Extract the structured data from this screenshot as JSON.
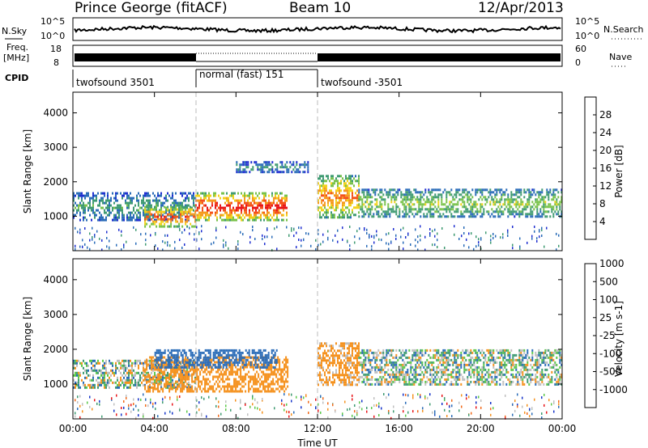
{
  "header": {
    "station": "Prince George (fitACF)",
    "beam": "Beam 10",
    "date": "12/Apr/2013"
  },
  "strip_labels": {
    "nsky": "N.Sky",
    "nsky_ticks": [
      "10^5",
      "10^0"
    ],
    "nsearch": "N.Search",
    "nsearch_ticks": [
      "10^5",
      "10^0"
    ],
    "freq_line1": "Freq.",
    "freq_line2": "[MHz]",
    "freq_ticks": [
      "18",
      "8"
    ],
    "nave": "Nave",
    "nave_ticks": [
      "60",
      "0"
    ],
    "cpid": "CPID"
  },
  "cpid_segments": [
    {
      "label": "twofsound 3501",
      "start": 0,
      "end": 6
    },
    {
      "label": "normal (fast) 151",
      "start": 6,
      "end": 12
    },
    {
      "label": "twofsound -3501",
      "start": 12,
      "end": 24
    }
  ],
  "xaxis": {
    "label": "Time UT",
    "ticks": [
      "00:00",
      "04:00",
      "08:00",
      "12:00",
      "16:00",
      "20:00",
      "00:00"
    ],
    "range_hours": [
      0,
      24
    ]
  },
  "chart_data": [
    {
      "type": "heatmap",
      "name": "power",
      "ylabel": "Slant Range [km]",
      "yticks": [
        "1000",
        "2000",
        "3000",
        "4000"
      ],
      "ylim": [
        0,
        4600
      ],
      "colorbar_label": "Power [dB]",
      "colorbar_ticks": [
        "4",
        "8",
        "12",
        "16",
        "20",
        "24",
        "28"
      ],
      "colorbar_colors": [
        "#1f2fd0",
        "#2a6cb8",
        "#3f9b72",
        "#79c24a",
        "#f2d21a",
        "#f59a1e",
        "#f4521a",
        "#e8161a"
      ],
      "echo_bands": [
        {
          "t_start": 0.0,
          "t_end": 6.0,
          "range_low": 900,
          "range_high": 1700,
          "power_db": 10
        },
        {
          "t_start": 3.5,
          "t_end": 6.0,
          "range_low": 700,
          "range_high": 1300,
          "power_db": 25
        },
        {
          "t_start": 6.0,
          "t_end": 10.5,
          "range_low": 900,
          "range_high": 1700,
          "power_db": 28
        },
        {
          "t_start": 8.0,
          "t_end": 11.5,
          "range_low": 2300,
          "range_high": 2600,
          "power_db": 8
        },
        {
          "t_start": 12.0,
          "t_end": 14.0,
          "range_low": 1000,
          "range_high": 2200,
          "power_db": 22
        },
        {
          "t_start": 14.0,
          "t_end": 24.0,
          "range_low": 1000,
          "range_high": 1800,
          "power_db": 14
        }
      ]
    },
    {
      "type": "heatmap",
      "name": "velocity",
      "ylabel": "Slant Range [km]",
      "yticks": [
        "1000",
        "2000",
        "3000",
        "4000"
      ],
      "ylim": [
        0,
        4600
      ],
      "colorbar_label": "Velocity [m s-1]",
      "colorbar_ticks": [
        "1000",
        "500",
        "100",
        "25",
        "-25",
        "-100",
        "-500",
        "-1000"
      ],
      "colorbar_colors": [
        "#1533c8",
        "#2a6cb8",
        "#3f9b72",
        "#5cc84a",
        "#bfbfbf",
        "#f5921e",
        "#f26a1a",
        "#e8161a"
      ],
      "echo_bands": [
        {
          "t_start": 0.0,
          "t_end": 6.0,
          "range_low": 900,
          "range_high": 1700,
          "velocity": 0
        },
        {
          "t_start": 3.5,
          "t_end": 10.5,
          "range_low": 800,
          "range_high": 1800,
          "velocity": -300
        },
        {
          "t_start": 4.0,
          "t_end": 10.0,
          "range_low": 1500,
          "range_high": 2000,
          "velocity": 300
        },
        {
          "t_start": 12.0,
          "t_end": 14.0,
          "range_low": 1000,
          "range_high": 2200,
          "velocity": -200
        },
        {
          "t_start": 14.0,
          "t_end": 24.0,
          "range_low": 1000,
          "range_high": 2000,
          "velocity": 0
        }
      ]
    }
  ]
}
